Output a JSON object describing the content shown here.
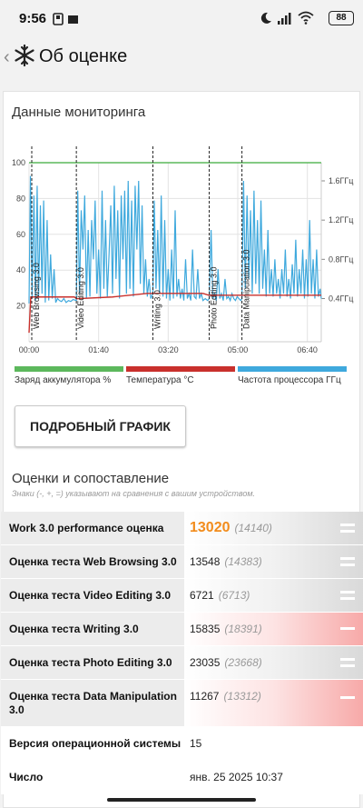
{
  "status": {
    "time": "9:56",
    "battery": "88"
  },
  "header": {
    "title": "Об оценке"
  },
  "monitoring": {
    "title": "Данные мониторинга",
    "detail_button": "ПОДРОБНЫЙ ГРАФИК"
  },
  "chart_data": {
    "type": "line",
    "x_ticks": [
      "00:00",
      "01:40",
      "03:20",
      "05:00",
      "06:40"
    ],
    "x_range_seconds": [
      0,
      25200
    ],
    "y_left_ticks": [
      "100",
      "80",
      "60",
      "40",
      "20"
    ],
    "y_left_range": [
      0,
      100
    ],
    "y_right_ticks": [
      "1.6ГГц",
      "1.2ГГц",
      "0.8ГГц",
      "0.4ГГц"
    ],
    "grid": true,
    "phases": [
      {
        "label": "Web Browsing 3.0",
        "start": 0
      },
      {
        "label": "Video Editing 3.0",
        "start": 4080
      },
      {
        "label": "Writing 3.0",
        "start": 10680
      },
      {
        "label": "Photo Editing 3.0",
        "start": 15540
      },
      {
        "label": "Data Manipulation 3.0",
        "start": 18360
      }
    ],
    "series": [
      {
        "name": "Заряд аккумулятора %",
        "color": "#5cb85c",
        "points": [
          [
            0,
            100
          ],
          [
            25200,
            100
          ]
        ]
      },
      {
        "name": "Температура °C",
        "color": "#c9302c",
        "points": [
          [
            0,
            5
          ],
          [
            150,
            25
          ],
          [
            3900,
            25
          ],
          [
            4100,
            24
          ],
          [
            7200,
            25
          ],
          [
            10200,
            27
          ],
          [
            15000,
            27
          ],
          [
            15500,
            26
          ],
          [
            25200,
            26
          ]
        ]
      },
      {
        "name": "Частота процессора ГГц",
        "color": "#3fa9dd",
        "points": [
          [
            0,
            0.35
          ],
          [
            120,
            1.65
          ],
          [
            260,
            0.4
          ],
          [
            420,
            1.45
          ],
          [
            560,
            0.38
          ],
          [
            700,
            1.55
          ],
          [
            820,
            0.4
          ],
          [
            980,
            1.35
          ],
          [
            1120,
            0.45
          ],
          [
            1260,
            1.4
          ],
          [
            1400,
            0.36
          ],
          [
            1560,
            1.2
          ],
          [
            1700,
            0.38
          ],
          [
            1860,
            0.85
          ],
          [
            2000,
            0.4
          ],
          [
            2160,
            0.7
          ],
          [
            2300,
            0.36
          ],
          [
            2460,
            0.4
          ],
          [
            2620,
            0.38
          ],
          [
            2800,
            0.37
          ],
          [
            3000,
            0.4
          ],
          [
            3200,
            0.36
          ],
          [
            3400,
            0.38
          ],
          [
            3600,
            0.37
          ],
          [
            3800,
            0.39
          ],
          [
            4080,
            0.38
          ],
          [
            4200,
            1.5
          ],
          [
            4350,
            0.45
          ],
          [
            4500,
            1.3
          ],
          [
            4650,
            0.9
          ],
          [
            4800,
            1.45
          ],
          [
            4950,
            0.4
          ],
          [
            5100,
            1.1
          ],
          [
            5250,
            0.42
          ],
          [
            5400,
            1.2
          ],
          [
            5550,
            0.8
          ],
          [
            5700,
            1.4
          ],
          [
            5850,
            0.45
          ],
          [
            6000,
            0.9
          ],
          [
            6150,
            0.4
          ],
          [
            6300,
            1.5
          ],
          [
            6450,
            0.5
          ],
          [
            6600,
            1.2
          ],
          [
            6750,
            0.42
          ],
          [
            6900,
            0.85
          ],
          [
            7050,
            1.35
          ],
          [
            7200,
            0.45
          ],
          [
            7350,
            1.55
          ],
          [
            7500,
            0.6
          ],
          [
            7650,
            1.3
          ],
          [
            7800,
            0.4
          ],
          [
            7950,
            1.45
          ],
          [
            8100,
            0.8
          ],
          [
            8250,
            1.5
          ],
          [
            8400,
            0.45
          ],
          [
            8550,
            1.6
          ],
          [
            8700,
            0.5
          ],
          [
            8850,
            1.4
          ],
          [
            9000,
            0.42
          ],
          [
            9150,
            1.55
          ],
          [
            9300,
            0.9
          ],
          [
            9450,
            1.6
          ],
          [
            9600,
            0.55
          ],
          [
            9750,
            1.35
          ],
          [
            9900,
            0.45
          ],
          [
            10050,
            0.8
          ],
          [
            10200,
            0.42
          ],
          [
            10350,
            0.6
          ],
          [
            10500,
            0.4
          ],
          [
            10680,
            0.45
          ],
          [
            10800,
            1.4
          ],
          [
            10950,
            0.5
          ],
          [
            11100,
            1.1
          ],
          [
            11250,
            0.45
          ],
          [
            11400,
            1.45
          ],
          [
            11550,
            0.42
          ],
          [
            11700,
            1.2
          ],
          [
            11850,
            0.4
          ],
          [
            12000,
            0.7
          ],
          [
            12150,
            0.38
          ],
          [
            12300,
            0.9
          ],
          [
            12450,
            0.4
          ],
          [
            12600,
            1.3
          ],
          [
            12750,
            0.42
          ],
          [
            12900,
            0.6
          ],
          [
            13050,
            0.4
          ],
          [
            13200,
            0.5
          ],
          [
            13350,
            0.38
          ],
          [
            13500,
            0.8
          ],
          [
            13650,
            0.4
          ],
          [
            13800,
            0.45
          ],
          [
            13950,
            0.38
          ],
          [
            14100,
            0.9
          ],
          [
            14250,
            0.42
          ],
          [
            14400,
            0.4
          ],
          [
            14550,
            0.7
          ],
          [
            14700,
            0.4
          ],
          [
            14850,
            0.45
          ],
          [
            15000,
            0.38
          ],
          [
            15200,
            0.4
          ],
          [
            15400,
            0.38
          ],
          [
            15540,
            0.4
          ],
          [
            15700,
            1.1
          ],
          [
            15850,
            0.4
          ],
          [
            16000,
            0.45
          ],
          [
            16150,
            0.38
          ],
          [
            16300,
            0.7
          ],
          [
            16450,
            0.4
          ],
          [
            16600,
            0.45
          ],
          [
            16750,
            0.38
          ],
          [
            16900,
            0.6
          ],
          [
            17050,
            0.4
          ],
          [
            17200,
            0.42
          ],
          [
            17350,
            0.38
          ],
          [
            17500,
            0.45
          ],
          [
            17650,
            0.4
          ],
          [
            17800,
            0.38
          ],
          [
            17950,
            0.42
          ],
          [
            18100,
            0.4
          ],
          [
            18250,
            0.38
          ],
          [
            18360,
            0.4
          ],
          [
            18500,
            1.6
          ],
          [
            18650,
            0.5
          ],
          [
            18800,
            1.45
          ],
          [
            18950,
            0.6
          ],
          [
            19100,
            1.3
          ],
          [
            19250,
            0.45
          ],
          [
            19400,
            1.5
          ],
          [
            19550,
            0.55
          ],
          [
            19700,
            1.2
          ],
          [
            19850,
            0.45
          ],
          [
            20000,
            1.4
          ],
          [
            20150,
            0.5
          ],
          [
            20300,
            0.9
          ],
          [
            20450,
            0.42
          ],
          [
            20600,
            1.1
          ],
          [
            20750,
            0.45
          ],
          [
            20900,
            0.7
          ],
          [
            21050,
            0.42
          ],
          [
            21200,
            0.8
          ],
          [
            21350,
            0.45
          ],
          [
            21500,
            0.6
          ],
          [
            21650,
            0.4
          ],
          [
            21800,
            0.7
          ],
          [
            21950,
            0.45
          ],
          [
            22100,
            0.9
          ],
          [
            22250,
            0.42
          ],
          [
            22400,
            0.6
          ],
          [
            22550,
            0.4
          ],
          [
            22700,
            0.75
          ],
          [
            22850,
            0.45
          ],
          [
            23000,
            1.0
          ],
          [
            23150,
            0.42
          ],
          [
            23300,
            0.7
          ],
          [
            23450,
            0.45
          ],
          [
            23600,
            0.9
          ],
          [
            23750,
            0.4
          ],
          [
            23900,
            0.8
          ],
          [
            24050,
            0.42
          ],
          [
            24200,
            1.2
          ],
          [
            24350,
            0.45
          ],
          [
            24500,
            0.8
          ],
          [
            24650,
            0.4
          ],
          [
            24800,
            0.9
          ],
          [
            24950,
            0.42
          ],
          [
            25100,
            0.5
          ],
          [
            25200,
            0.4
          ]
        ]
      }
    ]
  },
  "scores": {
    "title": "Оценки и сопоставление",
    "hint": "Знаки (-, +, =) указывают на сравнения с вашим устройством.",
    "rows": [
      {
        "name": "Work 3.0 performance оценка",
        "value": "13020",
        "ref": "(14140)",
        "cmp": "eq"
      },
      {
        "name": "Оценка теста Web Browsing 3.0",
        "value": "13548",
        "ref": "(14383)",
        "cmp": "eq"
      },
      {
        "name": "Оценка теста Video Editing 3.0",
        "value": "6721",
        "ref": "(6713)",
        "cmp": "eq"
      },
      {
        "name": "Оценка теста Writing 3.0",
        "value": "15835",
        "ref": "(18391)",
        "cmp": "lower"
      },
      {
        "name": "Оценка теста Photo Editing 3.0",
        "value": "23035",
        "ref": "(23668)",
        "cmp": "eq"
      },
      {
        "name": "Оценка теста Data Manipulation 3.0",
        "value": "11267",
        "ref": "(13312)",
        "cmp": "lower"
      }
    ],
    "info": [
      {
        "name": "Версия операционной системы",
        "value": "15"
      },
      {
        "name": "Число",
        "value": "янв. 25 2025 10:37"
      }
    ]
  }
}
